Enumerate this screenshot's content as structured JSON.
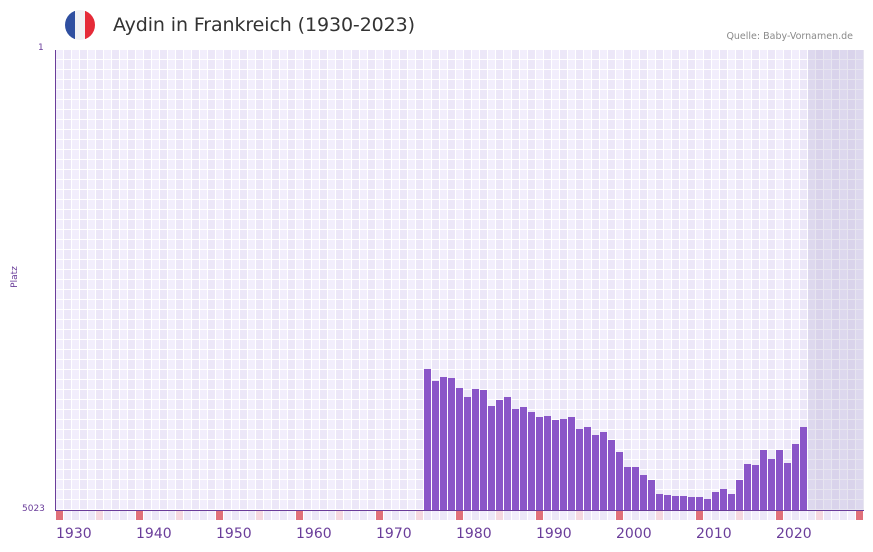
{
  "header": {
    "title": "Aydin in Frankreich (1930-2023)",
    "source": "Quelle: Baby-Vornamen.de",
    "flag_icon": "france-flag-icon",
    "flag_colors": [
      "#2f4fa0",
      "#f1f1f4",
      "#e52b38"
    ]
  },
  "axes": {
    "y_top_label": "1",
    "y_bottom_label": "5023",
    "y_title": "Platz"
  },
  "colors": {
    "bar": "#8a56c8",
    "axis": "#6a3d9a",
    "decade_marker": "#e0707a",
    "half_decade_marker": "#f5d8e0",
    "forecast_shade": "#e3dfee"
  },
  "chart_data": {
    "type": "bar",
    "title": "Aydin in Frankreich (1930-2023)",
    "xlabel": "",
    "ylabel": "Platz",
    "y_inverted": true,
    "ylim": [
      1,
      5023
    ],
    "xlim": [
      1930,
      2030
    ],
    "x_ticks": [
      "1930",
      "1940",
      "1950",
      "1960",
      "1970",
      "1980",
      "1990",
      "2000",
      "2010",
      "2020"
    ],
    "shaded_range": [
      2024,
      2030
    ],
    "grid": true,
    "legend": null,
    "categories": [
      1976,
      1977,
      1978,
      1979,
      1980,
      1981,
      1982,
      1983,
      1984,
      1985,
      1986,
      1987,
      1988,
      1989,
      1990,
      1991,
      1992,
      1993,
      1994,
      1995,
      1996,
      1997,
      1998,
      1999,
      2000,
      2001,
      2002,
      2003,
      2004,
      2005,
      2006,
      2007,
      2008,
      2009,
      2010,
      2011,
      2012,
      2013,
      2014,
      2015,
      2016,
      2017,
      2018,
      2019,
      2020,
      2021,
      2022,
      2023
    ],
    "values": [
      3484,
      3614,
      3571,
      3582,
      3691,
      3789,
      3702,
      3713,
      3888,
      3822,
      3789,
      3920,
      3899,
      3953,
      4008,
      3997,
      4040,
      4029,
      4008,
      4139,
      4117,
      4204,
      4171,
      4259,
      4390,
      4553,
      4553,
      4641,
      4695,
      4848,
      4859,
      4870,
      4870,
      4881,
      4881,
      4903,
      4826,
      4794,
      4848,
      4695,
      4521,
      4532,
      4368,
      4466,
      4368,
      4510,
      4303,
      4117
    ]
  }
}
